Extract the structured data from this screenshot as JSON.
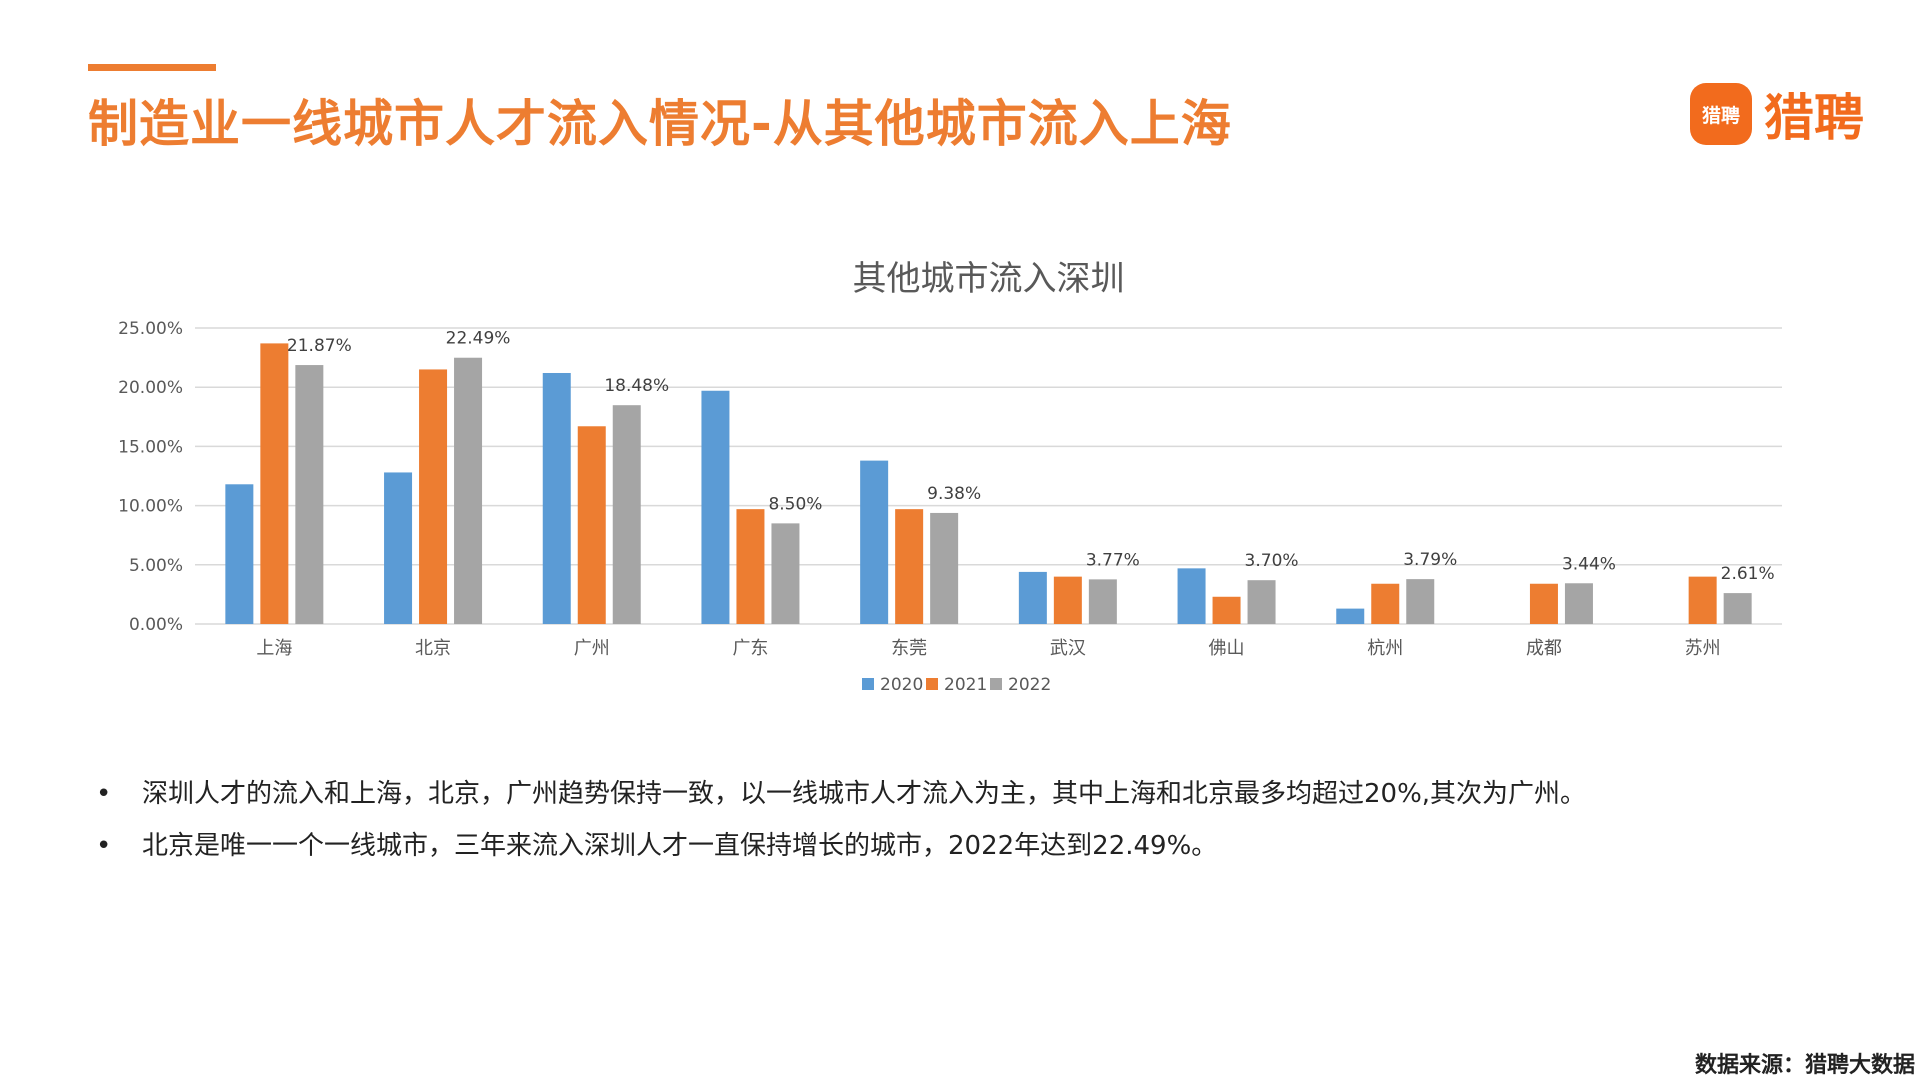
{
  "header": {
    "title": "制造业一线城市人才流入情况-从其他城市流入上海",
    "logo_icon_text": "猎聘",
    "logo_text": "猎聘"
  },
  "chart_data": {
    "type": "bar",
    "title": "其他城市流入深圳",
    "xlabel": "",
    "ylabel": "",
    "categories": [
      "上海",
      "北京",
      "广州",
      "广东",
      "东莞",
      "武汉",
      "佛山",
      "杭州",
      "成都",
      "苏州"
    ],
    "series": [
      {
        "name": "2020",
        "color": "#5B9BD5",
        "values": [
          11.8,
          12.8,
          21.2,
          19.7,
          13.8,
          4.4,
          4.7,
          1.3,
          null,
          null
        ]
      },
      {
        "name": "2021",
        "color": "#ED7D31",
        "values": [
          23.7,
          21.5,
          16.7,
          9.7,
          9.7,
          4.0,
          2.3,
          3.4,
          3.4,
          4.0
        ]
      },
      {
        "name": "2022",
        "color": "#A5A5A5",
        "values": [
          21.87,
          22.49,
          18.48,
          8.5,
          9.38,
          3.77,
          3.7,
          3.79,
          3.44,
          2.61
        ]
      }
    ],
    "data_labels": [
      "21.87%",
      "22.49%",
      "18.48%",
      "8.50%",
      "9.38%",
      "3.77%",
      "3.70%",
      "3.79%",
      "3.44%",
      "2.61%"
    ],
    "yticks": [
      "0.00%",
      "5.00%",
      "10.00%",
      "15.00%",
      "20.00%",
      "25.00%"
    ],
    "ylim": [
      0,
      25
    ],
    "grid": true,
    "legend_position": "bottom"
  },
  "bullets": {
    "marker": "•",
    "items": [
      "深圳人才的流入和上海，北京，广州趋势保持一致，以一线城市人才流入为主，其中上海和北京最多均超过20%,其次为广州。",
      "北京是唯一一个一线城市，三年来流入深圳人才一直保持增长的城市，2022年达到22.49%。"
    ]
  },
  "footer": {
    "source": "数据来源：猎聘大数据"
  }
}
